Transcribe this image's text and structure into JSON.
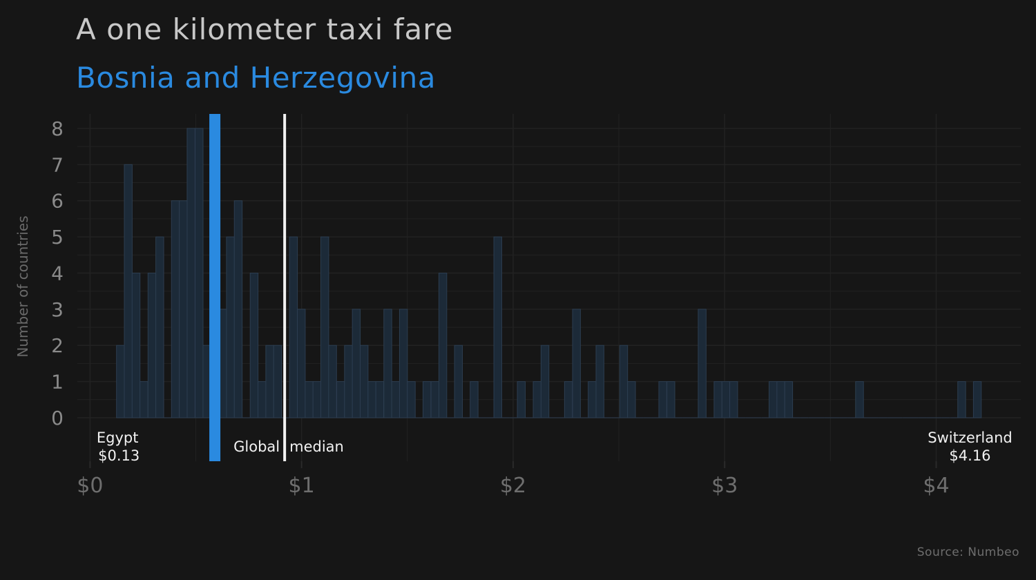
{
  "title": "A one kilometer taxi fare",
  "subtitle": "Bosnia and Herzegovina",
  "source": "Source: Numbeo",
  "colors": {
    "background": "#161616",
    "bar_fill": "#1c2a38",
    "bar_stroke": "#2c3d50",
    "highlight": "#2a8ae0",
    "median_line": "#f2f2f2",
    "grid": "#222222"
  },
  "chart_data": {
    "type": "bar",
    "ylabel": "Number of countries",
    "xlim": [
      -0.06,
      4.4
    ],
    "ylim": [
      0,
      8.4
    ],
    "x_ticks": [
      {
        "value": 0,
        "label": "$0"
      },
      {
        "value": 1,
        "label": "$1"
      },
      {
        "value": 2,
        "label": "$2"
      },
      {
        "value": 3,
        "label": "$3"
      },
      {
        "value": 4,
        "label": "$4"
      }
    ],
    "y_ticks": [
      0,
      1,
      2,
      3,
      4,
      5,
      6,
      7,
      8
    ],
    "grid": true,
    "bin_width": 0.0372,
    "bin_starts": [
      0.125,
      0.162,
      0.199,
      0.236,
      0.274,
      0.311,
      0.348,
      0.385,
      0.422,
      0.459,
      0.497,
      0.534,
      0.571,
      0.608,
      0.645,
      0.682,
      0.72,
      0.757,
      0.794,
      0.831,
      0.868,
      0.905,
      0.943,
      0.98,
      1.017,
      1.054,
      1.091,
      1.128,
      1.166,
      1.203,
      1.24,
      1.277,
      1.314,
      1.351,
      1.389,
      1.426,
      1.463,
      1.5,
      1.537,
      1.574,
      1.612,
      1.649,
      1.686,
      1.723,
      1.76,
      1.797,
      1.835,
      1.872,
      1.909,
      1.946,
      1.983,
      2.02,
      2.058,
      2.095,
      2.132,
      2.169,
      2.206,
      2.243,
      2.281,
      2.318,
      2.355,
      2.392,
      2.429,
      2.466,
      2.504,
      2.541,
      2.578,
      2.615,
      2.652,
      2.689,
      2.727,
      2.764,
      2.801,
      2.838,
      2.875,
      2.912,
      2.95,
      2.987,
      3.024,
      3.061,
      3.098,
      3.135,
      3.173,
      3.21,
      3.247,
      3.284,
      3.321,
      3.358,
      3.396,
      3.433,
      3.47,
      3.507,
      3.544,
      3.581,
      3.619,
      3.656,
      3.693,
      3.73,
      3.767,
      3.804,
      3.842,
      3.879,
      3.916,
      3.953,
      3.99,
      4.027,
      4.065,
      4.102,
      4.139,
      4.176
    ],
    "counts": [
      2,
      7,
      4,
      1,
      4,
      5,
      0,
      6,
      6,
      8,
      8,
      2,
      0,
      3,
      5,
      6,
      0,
      4,
      1,
      2,
      2,
      0,
      5,
      3,
      1,
      1,
      5,
      2,
      1,
      2,
      3,
      2,
      1,
      1,
      3,
      1,
      3,
      1,
      0,
      1,
      1,
      4,
      0,
      2,
      0,
      1,
      0,
      0,
      5,
      0,
      0,
      1,
      0,
      1,
      2,
      0,
      0,
      1,
      3,
      0,
      1,
      2,
      0,
      0,
      2,
      1,
      0,
      0,
      0,
      1,
      1,
      0,
      0,
      0,
      3,
      0,
      1,
      1,
      1,
      0,
      0,
      0,
      0,
      1,
      1,
      1,
      0,
      0,
      0,
      0,
      0,
      0,
      0,
      0,
      1,
      0,
      0,
      0,
      0,
      0,
      0,
      0,
      0,
      0,
      0,
      0,
      0,
      1,
      0,
      1
    ],
    "highlight": {
      "name": "Bosnia and Herzegovina",
      "value": 0.59
    },
    "median": {
      "label": "Global median",
      "value": 0.92
    },
    "min_annotation": {
      "name": "Egypt",
      "value_label": "$0.13",
      "value": 0.13
    },
    "max_annotation": {
      "name": "Switzerland",
      "value_label": "$4.16",
      "value": 4.16
    }
  }
}
